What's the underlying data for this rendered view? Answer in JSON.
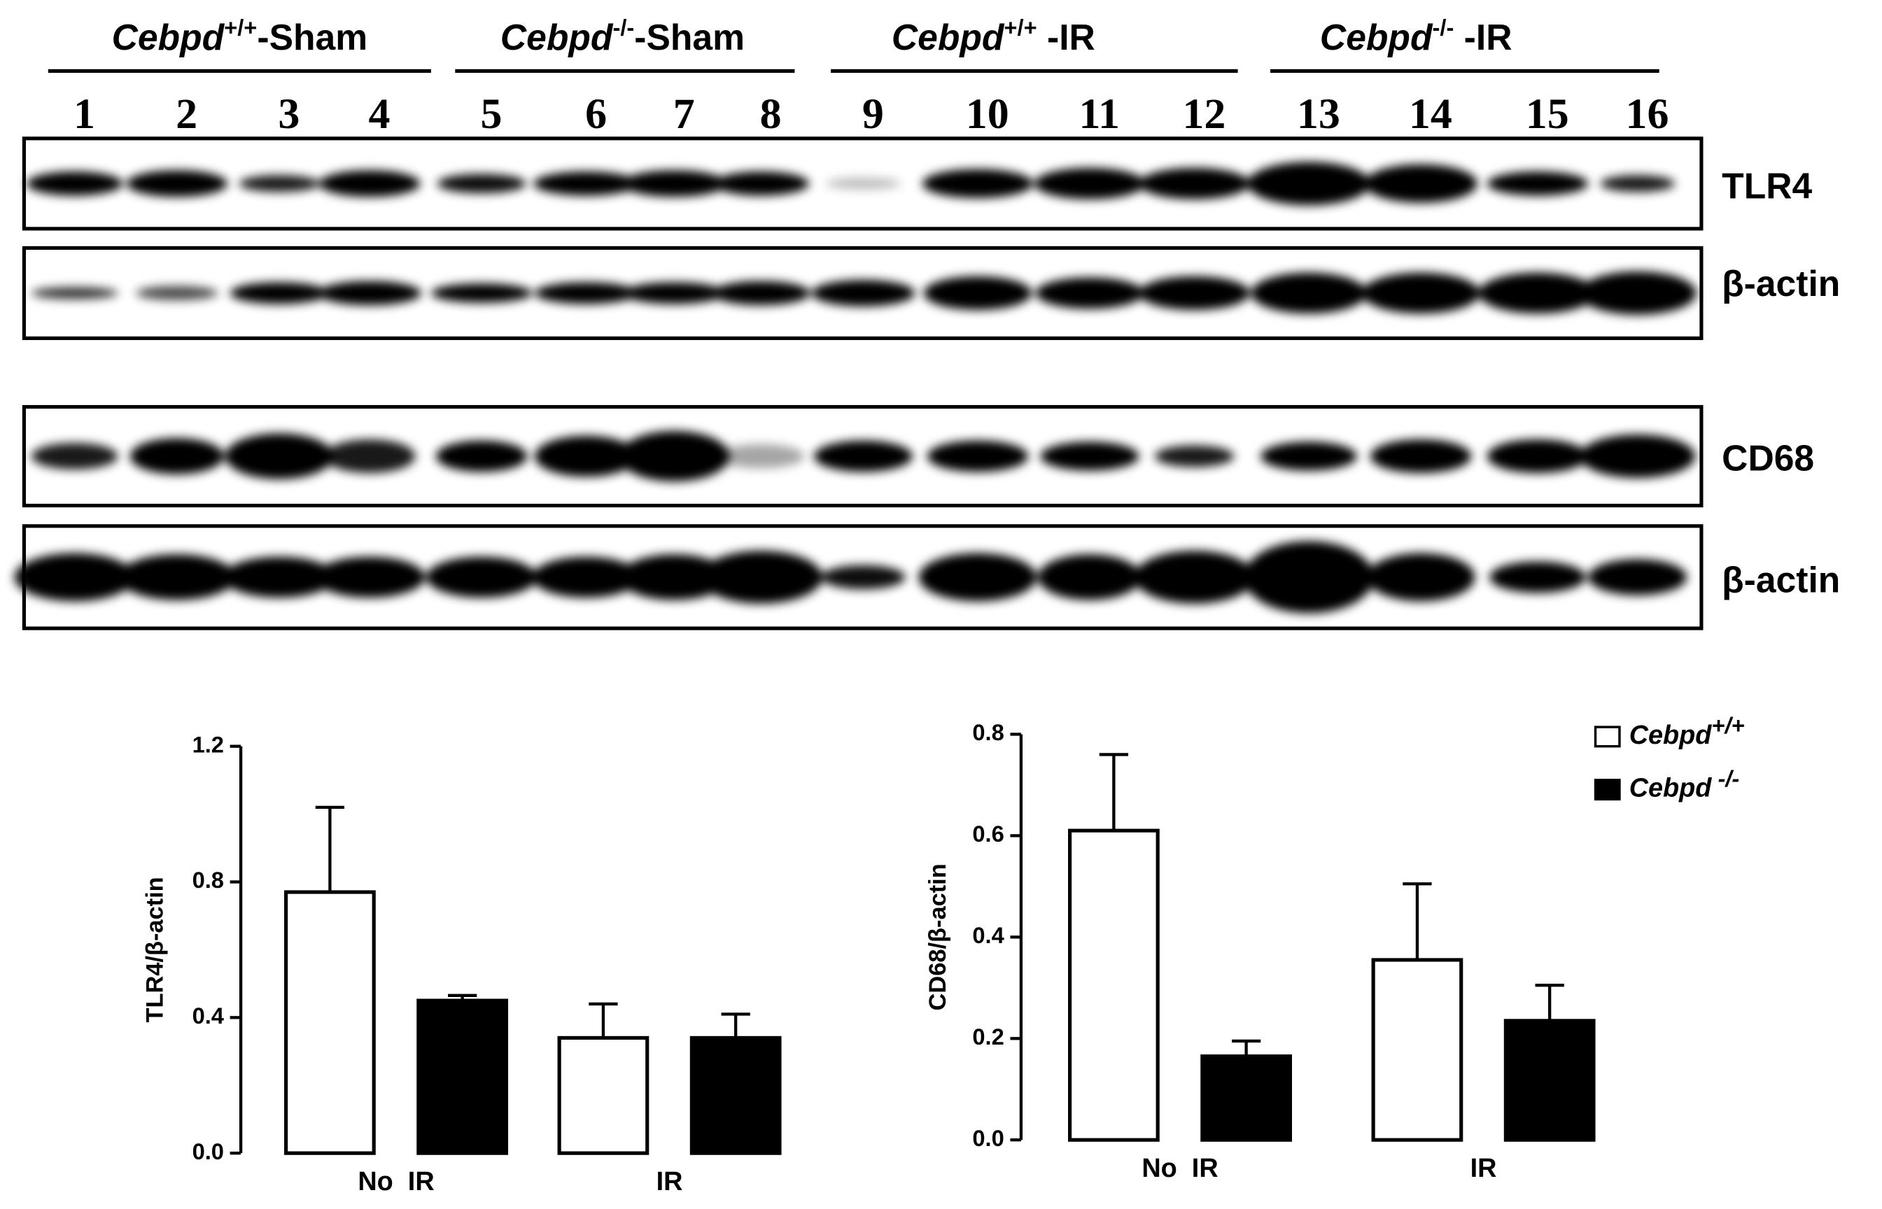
{
  "blot": {
    "groups": [
      {
        "gene": "Cebpd",
        "genotype": "+/+",
        "condition": "-Sham"
      },
      {
        "gene": "Cebpd",
        "genotype": "-/-",
        "condition": "-Sham"
      },
      {
        "gene": "Cebpd",
        "genotype": "+/+",
        "condition": " -IR"
      },
      {
        "gene": "Cebpd",
        "genotype": "-/-",
        "condition": " -IR"
      }
    ],
    "lanes": [
      1,
      2,
      3,
      4,
      5,
      6,
      7,
      8,
      9,
      10,
      11,
      12,
      13,
      14,
      15,
      16
    ],
    "panels": [
      "TLR4",
      "β-actin",
      "CD68",
      "β-actin"
    ]
  },
  "chart_data": [
    {
      "type": "bar",
      "y_label": "TLR4/β-actin",
      "categories": [
        "No  IR",
        "IR"
      ],
      "series": [
        {
          "color": "#ffffff",
          "values": [
            0.77,
            0.34
          ],
          "errors": [
            0.25,
            0.1
          ]
        },
        {
          "color": "#000000",
          "values": [
            0.45,
            0.34
          ],
          "errors": [
            0.015,
            0.07
          ]
        }
      ],
      "ylim": [
        0,
        1.2
      ],
      "yticks": [
        {
          "value": 0,
          "label": "0.0"
        },
        0.4,
        0.8,
        1.2
      ],
      "legend": false
    },
    {
      "type": "bar",
      "y_label": "CD68/β-actin",
      "categories": [
        "No  IR",
        "IR"
      ],
      "series": [
        {
          "name": "Cebpd+/+",
          "color": "#ffffff",
          "values": [
            0.61,
            0.355
          ],
          "errors": [
            0.15,
            0.15
          ]
        },
        {
          "name": "Cebpd -/-",
          "color": "#000000",
          "values": [
            0.165,
            0.235
          ],
          "errors": [
            0.03,
            0.07
          ]
        }
      ],
      "ylim": [
        0,
        0.8
      ],
      "yticks": [
        {
          "value": 0,
          "label": "0.0"
        },
        0.2,
        0.4,
        0.6,
        0.8
      ],
      "legend": "upper right"
    }
  ]
}
